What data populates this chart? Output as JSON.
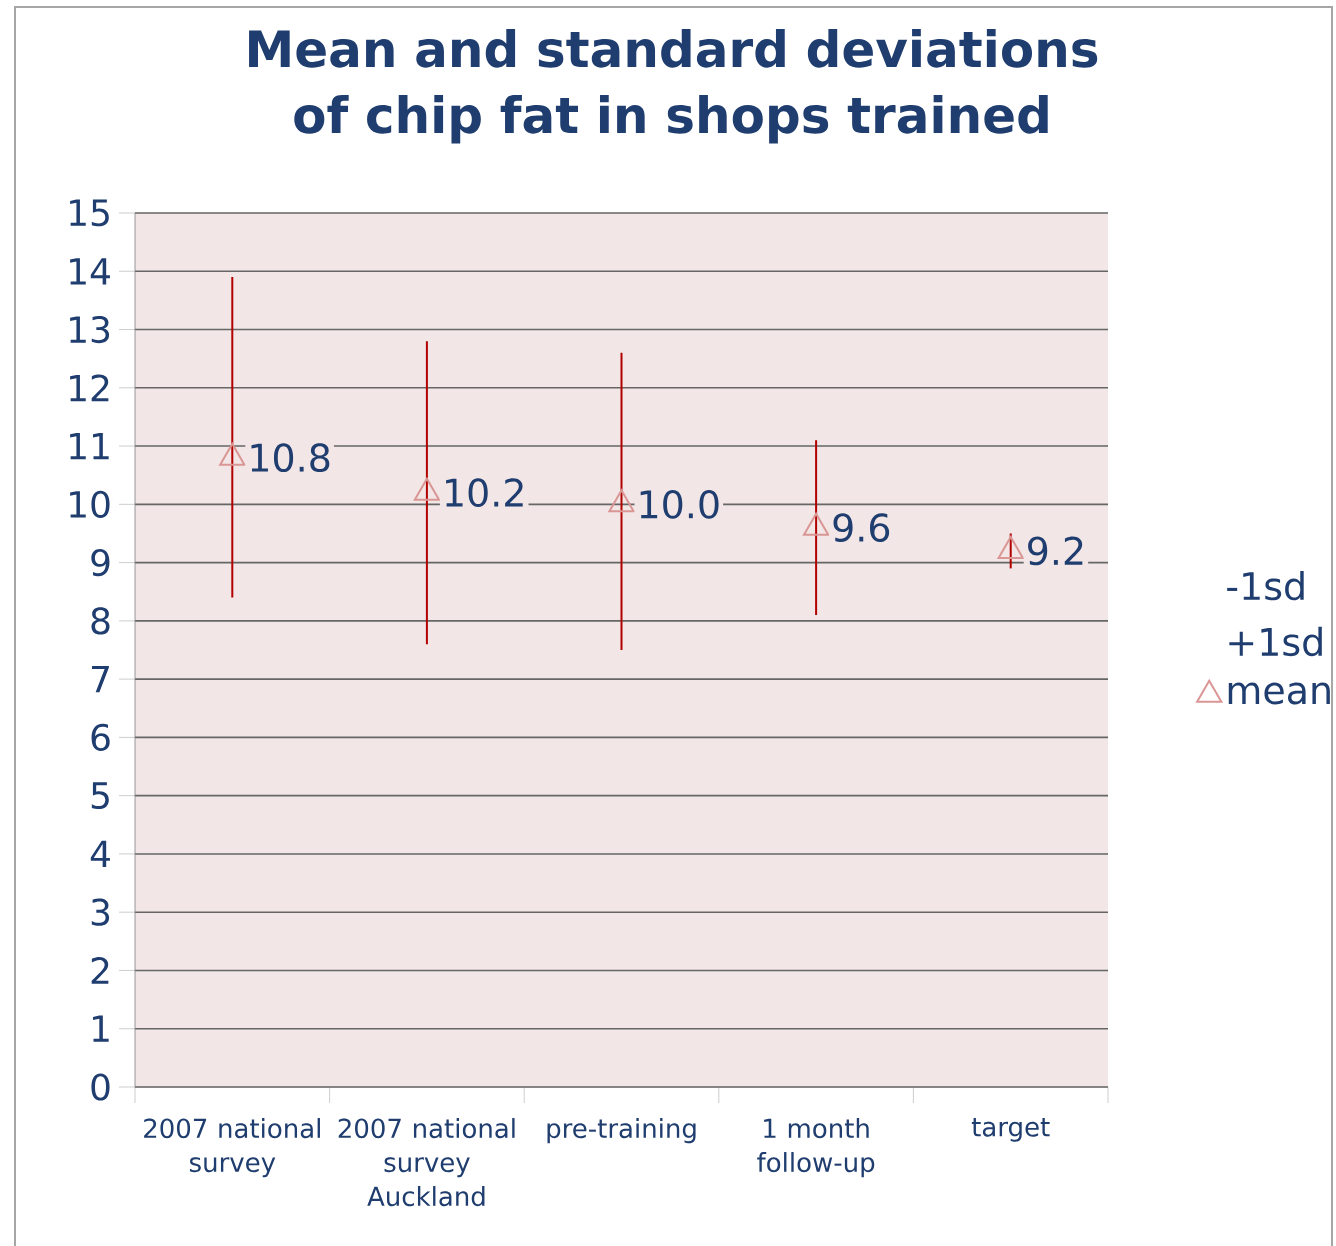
{
  "chart_data": {
    "type": "scatter",
    "title": "Mean and standard deviations of chip fat in shops trained",
    "categories": [
      "2007 national survey",
      "2007 national survey Auckland",
      "pre-training",
      "1 month follow-up",
      "target"
    ],
    "series": [
      {
        "name": "mean",
        "color": "#d99694",
        "marker": "triangle",
        "values": [
          10.8,
          10.2,
          10.0,
          9.6,
          9.2
        ],
        "value_labels": [
          "10.8",
          "10.2",
          "10.0",
          "9.6",
          "9.2"
        ],
        "errors": [
          [
            8.4,
            13.9
          ],
          [
            7.6,
            12.8
          ],
          [
            7.5,
            12.6
          ],
          [
            8.1,
            11.1
          ],
          [
            8.9,
            9.5
          ]
        ]
      }
    ],
    "ylim": [
      0,
      15
    ],
    "yticks": [
      0,
      1,
      2,
      3,
      4,
      5,
      6,
      7,
      8,
      9,
      10,
      11,
      12,
      13,
      14,
      15
    ],
    "annotations": [
      "-1sd",
      "+1sd"
    ],
    "grid": "y",
    "legend": "right"
  }
}
